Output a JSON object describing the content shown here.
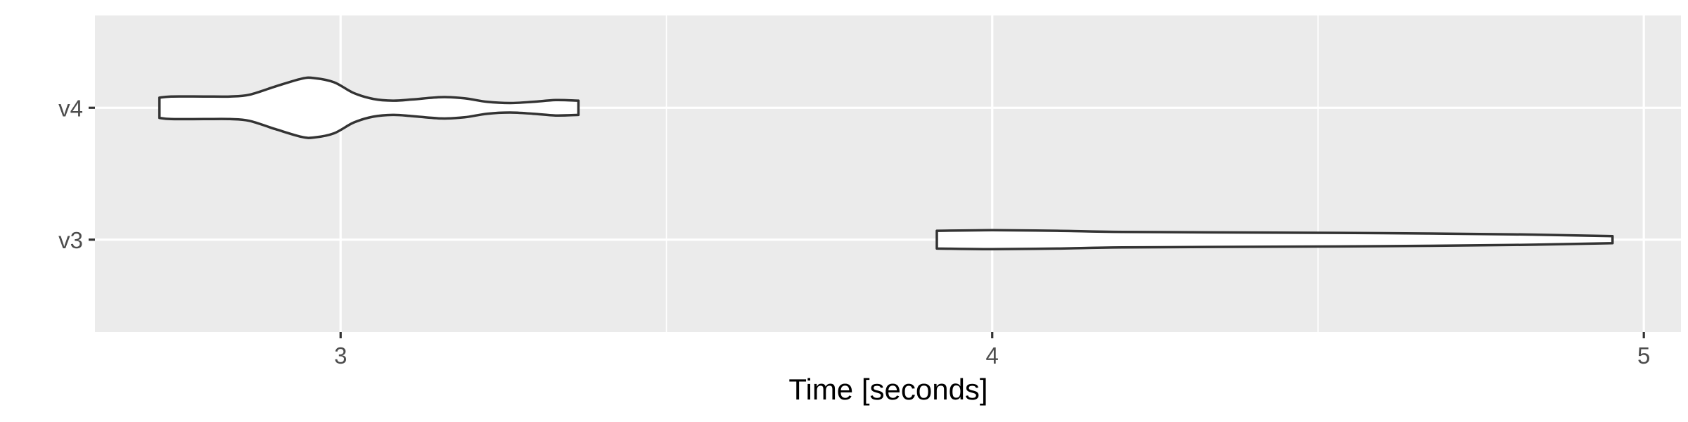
{
  "chart_data": {
    "type": "violin",
    "title": "",
    "xlabel": "Time [seconds]",
    "ylabel": "",
    "categories": [
      "v3",
      "v4"
    ],
    "x_ticks": [
      3,
      4,
      5
    ],
    "xlim": [
      2.623,
      5.057
    ],
    "grid": true,
    "legend": "none",
    "colors": {
      "panel_background": "#ebebeb",
      "grid_line": "#ffffff",
      "violin_fill": "#ffffff",
      "violin_outline": "#333333"
    },
    "series": [
      {
        "category": "v4",
        "range": [
          2.722,
          3.365
        ],
        "density_profile": [
          [
            2.722,
            0.17
          ],
          [
            2.74,
            0.19
          ],
          [
            2.79,
            0.19
          ],
          [
            2.83,
            0.19
          ],
          [
            2.86,
            0.22
          ],
          [
            2.9,
            0.36
          ],
          [
            2.94,
            0.49
          ],
          [
            2.96,
            0.5
          ],
          [
            2.99,
            0.43
          ],
          [
            3.02,
            0.25
          ],
          [
            3.05,
            0.15
          ],
          [
            3.08,
            0.12
          ],
          [
            3.11,
            0.14
          ],
          [
            3.155,
            0.18
          ],
          [
            3.19,
            0.16
          ],
          [
            3.225,
            0.1
          ],
          [
            3.26,
            0.08
          ],
          [
            3.295,
            0.1
          ],
          [
            3.33,
            0.13
          ],
          [
            3.365,
            0.12
          ]
        ]
      },
      {
        "category": "v3",
        "range": [
          3.915,
          4.952
        ],
        "density_profile": [
          [
            3.915,
            0.15
          ],
          [
            4.0,
            0.16
          ],
          [
            4.1,
            0.15
          ],
          [
            4.2,
            0.13
          ],
          [
            4.4,
            0.12
          ],
          [
            4.6,
            0.11
          ],
          [
            4.8,
            0.09
          ],
          [
            4.952,
            0.06
          ]
        ]
      }
    ]
  }
}
